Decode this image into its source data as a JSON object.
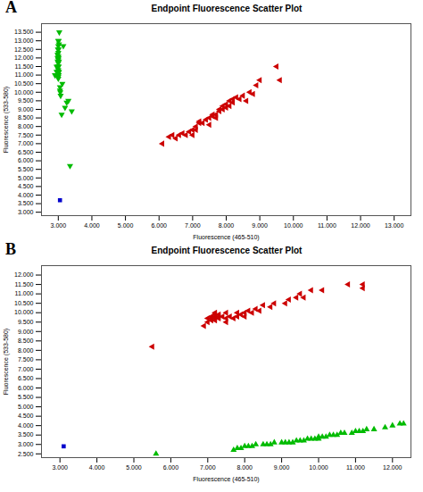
{
  "chart_data": [
    {
      "type": "scatter",
      "title": "Endpoint Fluorescence Scatter Plot",
      "xlabel": "Fluorescence (465-510)",
      "ylabel": "Fluorescence (533-580)",
      "annotations": [
        "A"
      ],
      "grid": false,
      "xlim": [
        2500,
        13500
      ],
      "ylim": [
        2800,
        14000
      ],
      "xticks": [
        {
          "value": 3000,
          "label": "3.000"
        },
        {
          "value": 4000,
          "label": "4.000"
        },
        {
          "value": 5000,
          "label": "5.000"
        },
        {
          "value": 6000,
          "label": "6.000"
        },
        {
          "value": 7000,
          "label": "7.000"
        },
        {
          "value": 8000,
          "label": "8.000"
        },
        {
          "value": 9000,
          "label": "9.000"
        },
        {
          "value": 10000,
          "label": "10.000"
        },
        {
          "value": 11000,
          "label": "11.000"
        },
        {
          "value": 12000,
          "label": "12.000"
        },
        {
          "value": 13000,
          "label": "13.000"
        }
      ],
      "yticks": [
        {
          "value": 3000,
          "label": "3.000"
        },
        {
          "value": 3500,
          "label": "3.500"
        },
        {
          "value": 4000,
          "label": "4.000"
        },
        {
          "value": 4500,
          "label": "4.500"
        },
        {
          "value": 5000,
          "label": "5.000"
        },
        {
          "value": 5500,
          "label": "5.500"
        },
        {
          "value": 6000,
          "label": "6.000"
        },
        {
          "value": 6500,
          "label": "6.500"
        },
        {
          "value": 7000,
          "label": "7.000"
        },
        {
          "value": 7500,
          "label": "7.500"
        },
        {
          "value": 8000,
          "label": "8.000"
        },
        {
          "value": 8500,
          "label": "8.500"
        },
        {
          "value": 9000,
          "label": "9.000"
        },
        {
          "value": 9500,
          "label": "9.500"
        },
        {
          "value": 10000,
          "label": "10.000"
        },
        {
          "value": 10500,
          "label": "10.500"
        },
        {
          "value": 11000,
          "label": "11.000"
        },
        {
          "value": 11500,
          "label": "11.500"
        },
        {
          "value": 12000,
          "label": "12.000"
        },
        {
          "value": 12500,
          "label": "12.500"
        },
        {
          "value": 13000,
          "label": "13.000"
        },
        {
          "value": 13500,
          "label": "13.500"
        }
      ],
      "series": [
        {
          "color": "#00bb00",
          "marker": "triangle-down",
          "x": [
            2900,
            2950,
            2950,
            2980,
            2980,
            2980,
            2990,
            2990,
            2990,
            3000,
            3000,
            3000,
            3000,
            3000,
            3000,
            3000,
            3000,
            3000,
            3000,
            3000,
            3000,
            3000,
            3010,
            3010,
            3010,
            3010,
            3010,
            3020,
            3020,
            3020,
            3030,
            3050,
            3050,
            3060,
            3070,
            3100,
            3120,
            3150,
            3200,
            3250,
            3300,
            3350,
            3400
          ],
          "values": [
            11000,
            11200,
            11500,
            11800,
            12000,
            12200,
            11000,
            11500,
            12500,
            10800,
            10900,
            11000,
            11100,
            11200,
            11300,
            11500,
            11700,
            11900,
            12100,
            12300,
            12700,
            13000,
            11000,
            11500,
            12000,
            12500,
            13000,
            11200,
            11800,
            12800,
            13500,
            10100,
            10300,
            10000,
            9800,
            8700,
            10500,
            12700,
            9100,
            9400,
            9500,
            5700,
            8900
          ]
        },
        {
          "color": "#cc0000",
          "marker": "triangle-left",
          "x": [
            6100,
            6300,
            6400,
            6500,
            6600,
            6700,
            6800,
            6900,
            7000,
            7000,
            7100,
            7100,
            7200,
            7200,
            7300,
            7400,
            7500,
            7500,
            7600,
            7600,
            7700,
            7700,
            7800,
            7800,
            7900,
            7900,
            8000,
            8000,
            8100,
            8100,
            8200,
            8200,
            8300,
            8400,
            8500,
            8600,
            8700,
            8800,
            8900,
            9000,
            9500,
            9600
          ],
          "values": [
            7000,
            7400,
            7500,
            7300,
            7500,
            7600,
            7500,
            7700,
            7500,
            7800,
            7800,
            8000,
            8200,
            8300,
            8200,
            8400,
            8100,
            8500,
            8600,
            8700,
            8500,
            8700,
            8900,
            9000,
            9000,
            9200,
            9100,
            9300,
            9200,
            9500,
            9400,
            9600,
            9700,
            9600,
            9800,
            9500,
            10000,
            9900,
            10400,
            10700,
            11500,
            10700
          ]
        },
        {
          "color": "#0000cc",
          "marker": "square",
          "x": [
            3050
          ],
          "values": [
            3700
          ]
        }
      ]
    },
    {
      "type": "scatter",
      "title": "Endpoint Fluorescence Scatter Plot",
      "xlabel": "Fluorescence (465-510)",
      "ylabel": "Fluorescence (533-580)",
      "annotations": [
        "B"
      ],
      "grid": false,
      "xlim": [
        2500,
        12500
      ],
      "ylim": [
        2300,
        12500
      ],
      "xticks": [
        {
          "value": 3000,
          "label": "3.000"
        },
        {
          "value": 4000,
          "label": "4.000"
        },
        {
          "value": 5000,
          "label": "5.000"
        },
        {
          "value": 6000,
          "label": "6.000"
        },
        {
          "value": 7000,
          "label": "7.000"
        },
        {
          "value": 8000,
          "label": "8.000"
        },
        {
          "value": 9000,
          "label": "9.000"
        },
        {
          "value": 10000,
          "label": "10.000"
        },
        {
          "value": 11000,
          "label": "11.000"
        },
        {
          "value": 12000,
          "label": "12.000"
        }
      ],
      "yticks": [
        {
          "value": 2500,
          "label": "2.500"
        },
        {
          "value": 3000,
          "label": "3.000"
        },
        {
          "value": 3500,
          "label": "3.500"
        },
        {
          "value": 4000,
          "label": "4.000"
        },
        {
          "value": 4500,
          "label": "4.500"
        },
        {
          "value": 5000,
          "label": "5.000"
        },
        {
          "value": 5500,
          "label": "5.500"
        },
        {
          "value": 6000,
          "label": "6.000"
        },
        {
          "value": 6500,
          "label": "6.500"
        },
        {
          "value": 7000,
          "label": "7.000"
        },
        {
          "value": 7500,
          "label": "7.500"
        },
        {
          "value": 8000,
          "label": "8.000"
        },
        {
          "value": 8500,
          "label": "8.500"
        },
        {
          "value": 9000,
          "label": "9.000"
        },
        {
          "value": 9500,
          "label": "9.500"
        },
        {
          "value": 10000,
          "label": "10.000"
        },
        {
          "value": 10500,
          "label": "10.500"
        },
        {
          "value": 11000,
          "label": "11.000"
        },
        {
          "value": 11500,
          "label": "11.500"
        },
        {
          "value": 12000,
          "label": "12.000"
        }
      ],
      "series": [
        {
          "color": "#00bb00",
          "marker": "triangle-up",
          "x": [
            5600,
            7700,
            7800,
            7900,
            8000,
            8100,
            8200,
            8300,
            8500,
            8600,
            8700,
            8800,
            9000,
            9100,
            9200,
            9300,
            9400,
            9500,
            9600,
            9700,
            9800,
            9900,
            10000,
            10000,
            10100,
            10200,
            10300,
            10400,
            10500,
            10600,
            10700,
            10900,
            11000,
            11100,
            11200,
            11300,
            11500,
            11800,
            12000,
            12200,
            12300
          ],
          "values": [
            2500,
            2700,
            2800,
            2800,
            2900,
            2900,
            2900,
            3000,
            3000,
            3000,
            3000,
            3100,
            3100,
            3100,
            3100,
            3100,
            3200,
            3200,
            3200,
            3300,
            3300,
            3300,
            3300,
            3400,
            3400,
            3400,
            3500,
            3500,
            3500,
            3600,
            3600,
            3600,
            3700,
            3700,
            3700,
            3800,
            3800,
            3900,
            4000,
            4100,
            4100
          ]
        },
        {
          "color": "#cc0000",
          "marker": "triangle-left",
          "x": [
            5500,
            6900,
            7000,
            7000,
            7100,
            7100,
            7100,
            7200,
            7200,
            7200,
            7200,
            7200,
            7300,
            7300,
            7300,
            7400,
            7500,
            7500,
            7500,
            7600,
            7700,
            7800,
            7800,
            7900,
            8000,
            8000,
            8100,
            8200,
            8300,
            8400,
            8500,
            8700,
            8800,
            9100,
            9200,
            9400,
            9500,
            9600,
            9800,
            10100,
            10800,
            11200,
            11200
          ],
          "values": [
            8200,
            9300,
            9500,
            9700,
            9600,
            9700,
            9800,
            9600,
            9700,
            9800,
            9900,
            10000,
            9700,
            9800,
            9900,
            9800,
            9500,
            9700,
            10000,
            9800,
            9700,
            9800,
            10000,
            9900,
            9800,
            10000,
            10100,
            10000,
            10200,
            10100,
            10400,
            10300,
            10500,
            10500,
            10700,
            10800,
            11000,
            10800,
            11200,
            11200,
            11500,
            11300,
            11500
          ]
        },
        {
          "color": "#0000cc",
          "marker": "square",
          "x": [
            3100
          ],
          "values": [
            2900
          ]
        }
      ]
    }
  ]
}
